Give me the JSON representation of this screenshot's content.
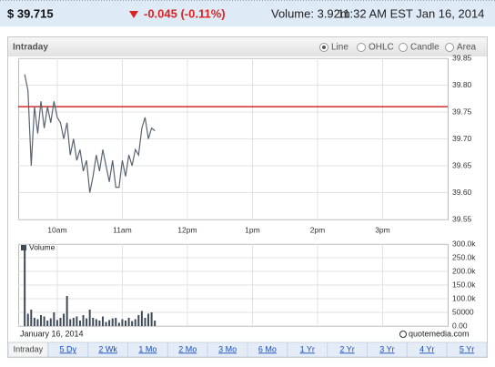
{
  "header": {
    "price": "$ 39.715",
    "change": "-0.045 (-0.11%)",
    "volume": "Volume: 3.92m",
    "time": "11:32 AM EST Jan 16, 2014"
  },
  "panel_title": "Intraday",
  "chart_types": [
    {
      "label": "Line",
      "selected": true
    },
    {
      "label": "OHLC",
      "selected": false
    },
    {
      "label": "Candle",
      "selected": false
    },
    {
      "label": "Area",
      "selected": false
    }
  ],
  "chart_data": [
    {
      "type": "line",
      "color": "#5a6470",
      "grid": true,
      "x": [
        9.5,
        9.55,
        9.6,
        9.65,
        9.7,
        9.75,
        9.8,
        9.85,
        9.9,
        9.95,
        10,
        10.05,
        10.1,
        10.15,
        10.2,
        10.25,
        10.3,
        10.35,
        10.4,
        10.45,
        10.5,
        10.55,
        10.6,
        10.65,
        10.7,
        10.75,
        10.8,
        10.85,
        10.9,
        10.95,
        11,
        11.05,
        11.1,
        11.15,
        11.2,
        11.25,
        11.3,
        11.35,
        11.4,
        11.45,
        11.5
      ],
      "values": [
        39.82,
        39.79,
        39.65,
        39.76,
        39.71,
        39.77,
        39.72,
        39.76,
        39.73,
        39.77,
        39.74,
        39.73,
        39.7,
        39.73,
        39.67,
        39.7,
        39.66,
        39.68,
        39.64,
        39.66,
        39.6,
        39.63,
        39.67,
        39.64,
        39.68,
        39.65,
        39.62,
        39.66,
        39.61,
        39.61,
        39.66,
        39.63,
        39.67,
        39.65,
        39.68,
        39.67,
        39.72,
        39.74,
        39.7,
        39.72,
        39.715
      ],
      "reference_line": {
        "value": 39.76,
        "color": "#cc0000"
      },
      "xlim": [
        9.4,
        16
      ],
      "xticks": [
        {
          "value": 10,
          "label": "10am"
        },
        {
          "value": 11,
          "label": "11am"
        },
        {
          "value": 12,
          "label": "12pm"
        },
        {
          "value": 13,
          "label": "1pm"
        },
        {
          "value": 14,
          "label": "2pm"
        },
        {
          "value": 15,
          "label": "3pm"
        }
      ],
      "ylim": [
        39.55,
        39.85
      ],
      "yticks": [
        39.85,
        {
          "value": 39.8,
          "label": "39.80"
        },
        39.75,
        {
          "value": 39.7,
          "label": "39.70"
        },
        39.65,
        {
          "value": 39.6,
          "label": "39.60"
        },
        39.55
      ]
    },
    {
      "type": "bar",
      "title": "Volume",
      "color": "#3d4a5a",
      "grid": true,
      "x": [
        9.5,
        9.55,
        9.6,
        9.65,
        9.7,
        9.75,
        9.8,
        9.85,
        9.9,
        9.95,
        10,
        10.05,
        10.1,
        10.15,
        10.2,
        10.25,
        10.3,
        10.35,
        10.4,
        10.45,
        10.5,
        10.55,
        10.6,
        10.65,
        10.7,
        10.75,
        10.8,
        10.85,
        10.9,
        10.95,
        11,
        11.05,
        11.1,
        11.15,
        11.2,
        11.25,
        11.3,
        11.35,
        11.4,
        11.45,
        11.5
      ],
      "values": [
        290000,
        45000,
        60000,
        30000,
        25000,
        40000,
        35000,
        20000,
        28000,
        50000,
        22000,
        30000,
        45000,
        110000,
        25000,
        30000,
        35000,
        20000,
        40000,
        28000,
        60000,
        30000,
        25000,
        20000,
        35000,
        15000,
        22000,
        28000,
        30000,
        12000,
        25000,
        20000,
        30000,
        18000,
        25000,
        40000,
        55000,
        30000,
        45000,
        50000,
        20000
      ],
      "xlim": [
        9.4,
        16
      ],
      "xticks": [
        10,
        11,
        12,
        13,
        14,
        15
      ],
      "ylim": [
        0,
        300000
      ],
      "yticks": [
        {
          "value": 300000,
          "label": "300.0k"
        },
        {
          "value": 250000,
          "label": "250.0k"
        },
        {
          "value": 200000,
          "label": "200.0k"
        },
        {
          "value": 150000,
          "label": "150.0k"
        },
        {
          "value": 100000,
          "label": "100.0k"
        },
        50000,
        {
          "value": 0,
          "label": "0.00"
        }
      ]
    }
  ],
  "footer": {
    "date": "January 16, 2014",
    "source": "quotemedia.com"
  },
  "tabs": [
    "Intraday",
    "5 Dy",
    "2 Wk",
    "1 Mo",
    "2 Mo",
    "3 Mo",
    "6 Mo",
    "1 Yr",
    "2 Yr",
    "3 Yr",
    "4 Yr",
    "5 Yr"
  ],
  "selected_tab": 0
}
